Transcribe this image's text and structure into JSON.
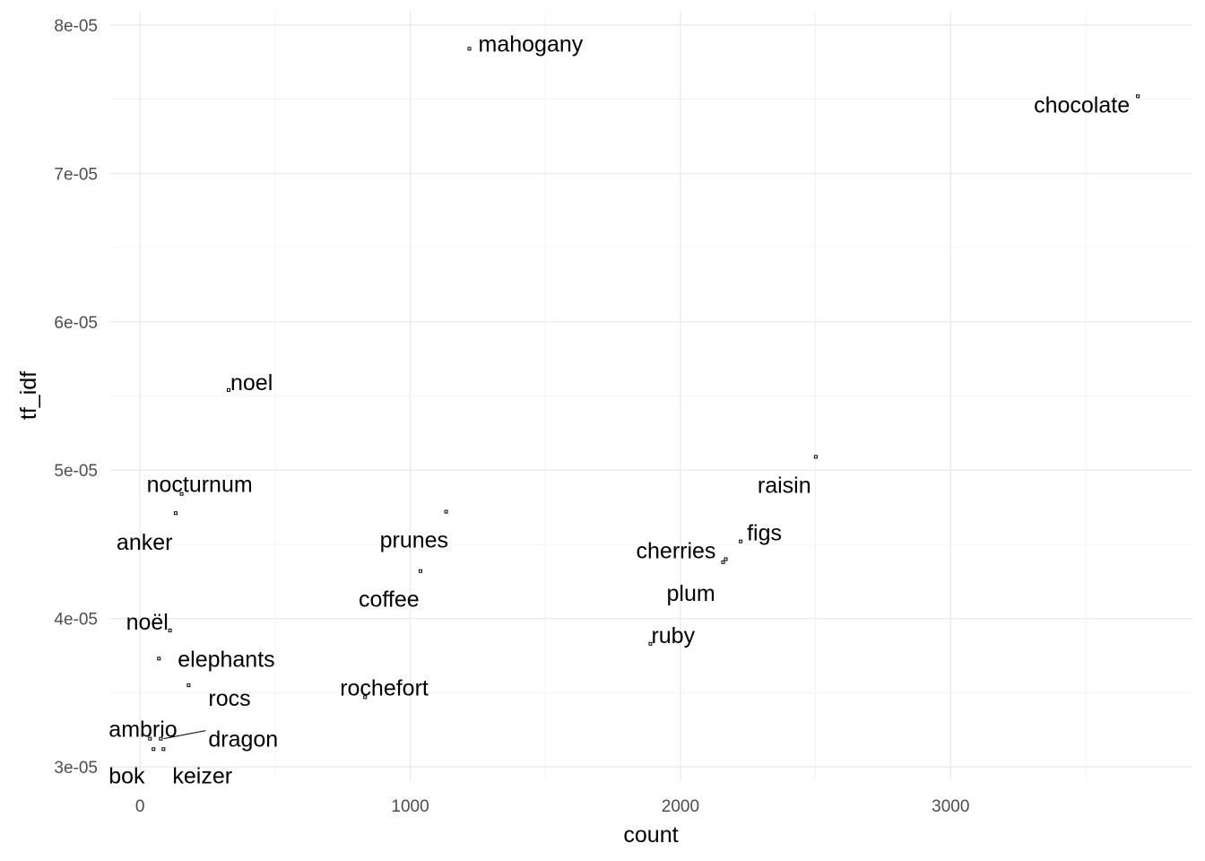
{
  "chart_data": {
    "type": "scatter",
    "xlabel": "count",
    "ylabel": "tf_idf",
    "xlim": [
      -110,
      3895
    ],
    "ylim": [
      2.91e-05,
      8.09e-05
    ],
    "x_ticks": [
      {
        "value": 0,
        "label": "0"
      },
      {
        "value": 1000,
        "label": "1000"
      },
      {
        "value": 2000,
        "label": "2000"
      },
      {
        "value": 3000,
        "label": "3000"
      }
    ],
    "y_ticks": [
      {
        "value": 3e-05,
        "label": "3e-05"
      },
      {
        "value": 4e-05,
        "label": "4e-05"
      },
      {
        "value": 5e-05,
        "label": "5e-05"
      },
      {
        "value": 6e-05,
        "label": "6e-05"
      },
      {
        "value": 7e-05,
        "label": "7e-05"
      },
      {
        "value": 8e-05,
        "label": "8e-05"
      }
    ],
    "grid": true,
    "legend": "none",
    "points": [
      {
        "label": "mahogany",
        "x": 1219,
        "y": 7.84e-05
      },
      {
        "label": "chocolate",
        "x": 3693,
        "y": 7.52e-05
      },
      {
        "label": "noel",
        "x": 328,
        "y": 5.54e-05
      },
      {
        "label": "raisin",
        "x": 2501,
        "y": 5.09e-05
      },
      {
        "label": "nocturnum",
        "x": 154,
        "y": 4.84e-05
      },
      {
        "label": "anker",
        "x": 132,
        "y": 4.71e-05
      },
      {
        "label": "prunes",
        "x": 1133,
        "y": 4.72e-05
      },
      {
        "label": "figs",
        "x": 2223,
        "y": 4.52e-05
      },
      {
        "label": "cherries",
        "x": 2168,
        "y": 4.4e-05
      },
      {
        "label": "plum",
        "x": 2158,
        "y": 4.38e-05
      },
      {
        "label": "coffee",
        "x": 1038,
        "y": 4.32e-05
      },
      {
        "label": "noël",
        "x": 111,
        "y": 3.92e-05
      },
      {
        "label": "ruby",
        "x": 1889,
        "y": 3.83e-05
      },
      {
        "label": "elephants",
        "x": 70,
        "y": 3.73e-05
      },
      {
        "label": "rocs",
        "x": 180,
        "y": 3.55e-05
      },
      {
        "label": "rochefort",
        "x": 833,
        "y": 3.47e-05
      },
      {
        "label": "ambrio",
        "x": 37,
        "y": 3.19e-05
      },
      {
        "label": "dragon",
        "x": 77,
        "y": 3.19e-05
      },
      {
        "label": "bok",
        "x": 50,
        "y": 3.12e-05
      },
      {
        "label": "keizer",
        "x": 87,
        "y": 3.12e-05
      }
    ]
  }
}
